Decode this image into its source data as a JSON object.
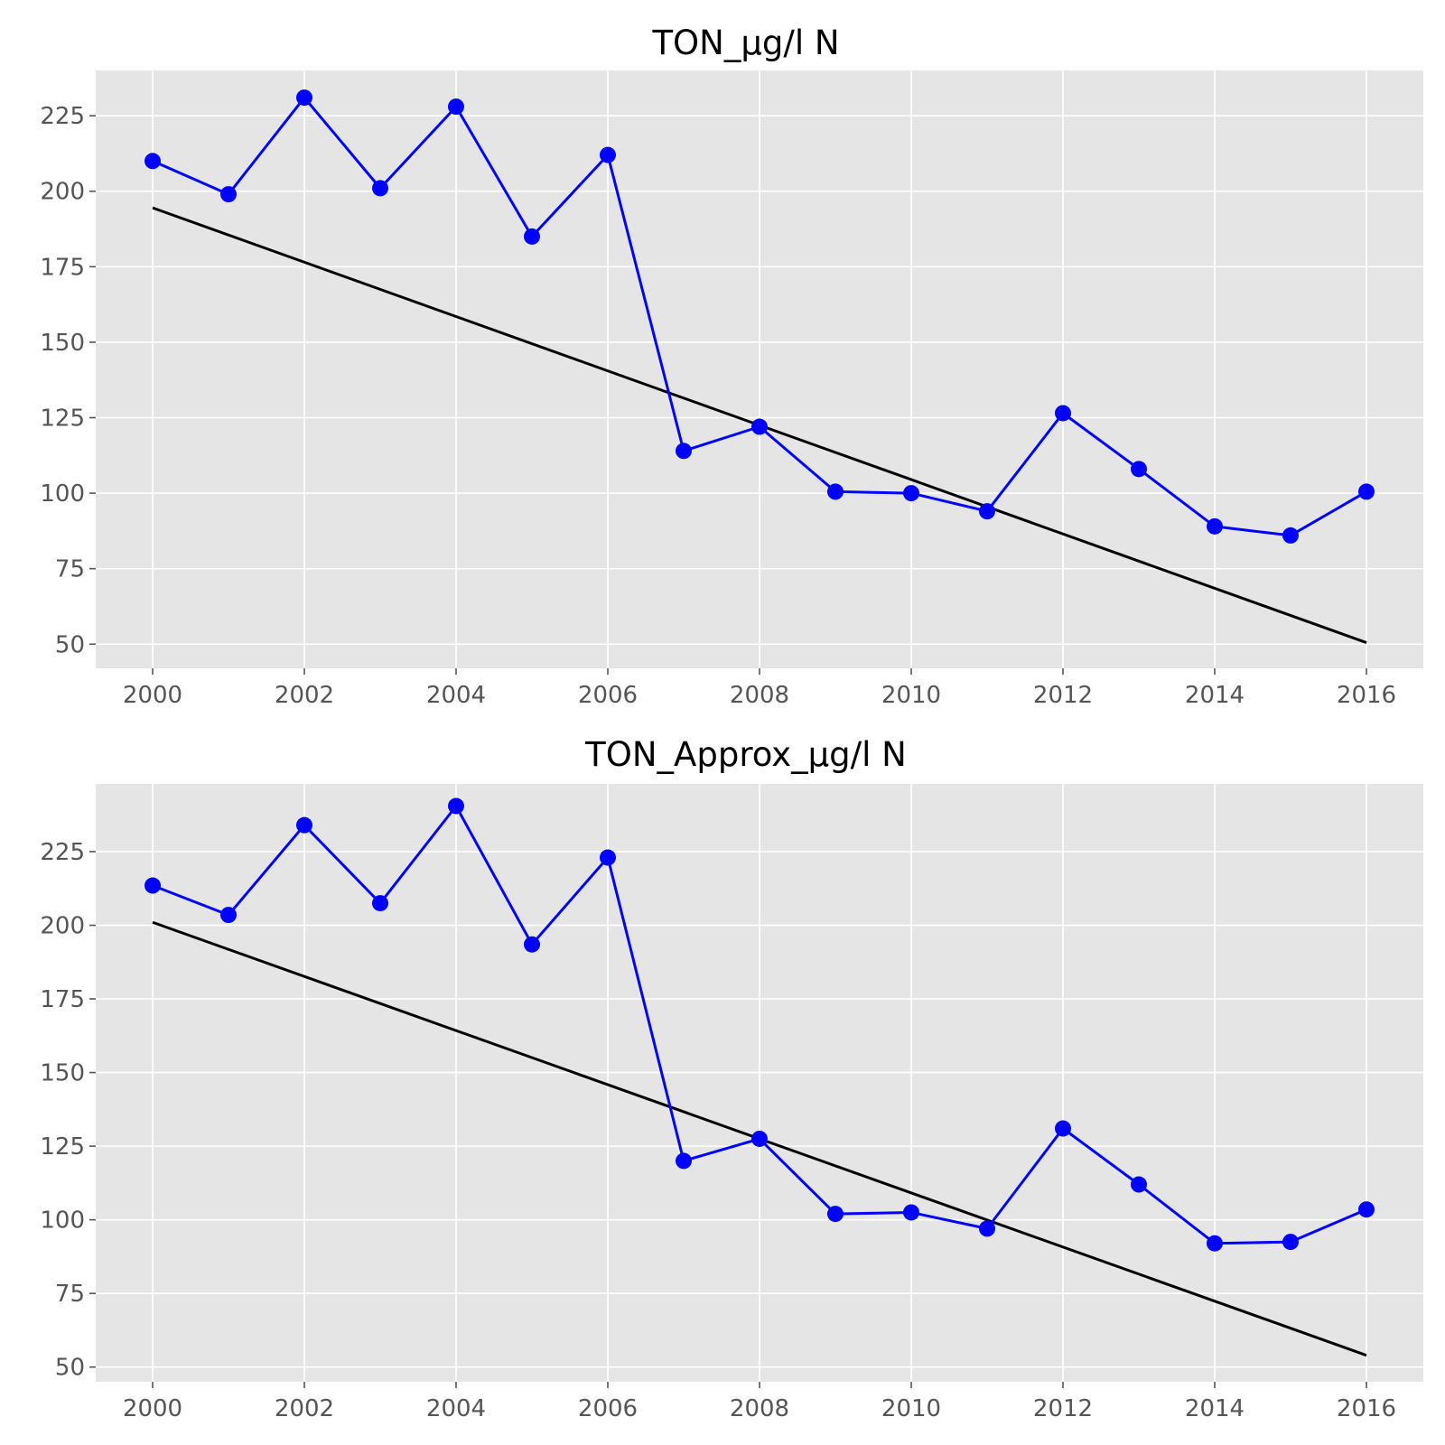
{
  "chart_data": [
    {
      "type": "line",
      "title": "TON_µg/l N",
      "xlabel": "",
      "ylabel": "",
      "x": [
        2000,
        2001,
        2002,
        2003,
        2004,
        2005,
        2006,
        2007,
        2008,
        2009,
        2010,
        2011,
        2012,
        2013,
        2014,
        2015,
        2016
      ],
      "xlim": [
        1999.25,
        2016.75
      ],
      "ylim": [
        42,
        240
      ],
      "xticks": [
        2000,
        2002,
        2004,
        2006,
        2008,
        2010,
        2012,
        2014,
        2016
      ],
      "yticks": [
        50,
        75,
        100,
        125,
        150,
        175,
        200,
        225
      ],
      "grid": true,
      "series": [
        {
          "values": [
            210,
            199,
            231,
            201,
            228,
            185,
            212,
            114,
            122,
            100.5,
            100,
            94,
            126.5,
            108,
            89,
            86,
            100.5
          ],
          "color": "#0000ff",
          "marker": "circle"
        }
      ],
      "trend_line": {
        "x": [
          2000,
          2016
        ],
        "y": [
          194.5,
          50.5
        ],
        "color": "#000000"
      }
    },
    {
      "type": "line",
      "title": "TON_Approx_µg/l N",
      "xlabel": "",
      "ylabel": "",
      "x": [
        2000,
        2001,
        2002,
        2003,
        2004,
        2005,
        2006,
        2007,
        2008,
        2009,
        2010,
        2011,
        2012,
        2013,
        2014,
        2015,
        2016
      ],
      "xlim": [
        1999.25,
        2016.75
      ],
      "ylim": [
        45,
        248
      ],
      "xticks": [
        2000,
        2002,
        2004,
        2006,
        2008,
        2010,
        2012,
        2014,
        2016
      ],
      "yticks": [
        50,
        75,
        100,
        125,
        150,
        175,
        200,
        225
      ],
      "grid": true,
      "series": [
        {
          "values": [
            213.5,
            203.5,
            234,
            207.5,
            240.5,
            193.5,
            223,
            120,
            127.5,
            102,
            102.5,
            97,
            131,
            112,
            92,
            92.5,
            103.5
          ],
          "color": "#0000ff",
          "marker": "circle"
        }
      ],
      "trend_line": {
        "x": [
          2000,
          2016
        ],
        "y": [
          201,
          54
        ],
        "color": "#000000"
      }
    }
  ],
  "style": {
    "plot_background": "#e5e5e5",
    "grid_color": "#ffffff",
    "series_color": "#0000ff",
    "trend_color": "#000000",
    "tick_label_color": "#555555"
  }
}
